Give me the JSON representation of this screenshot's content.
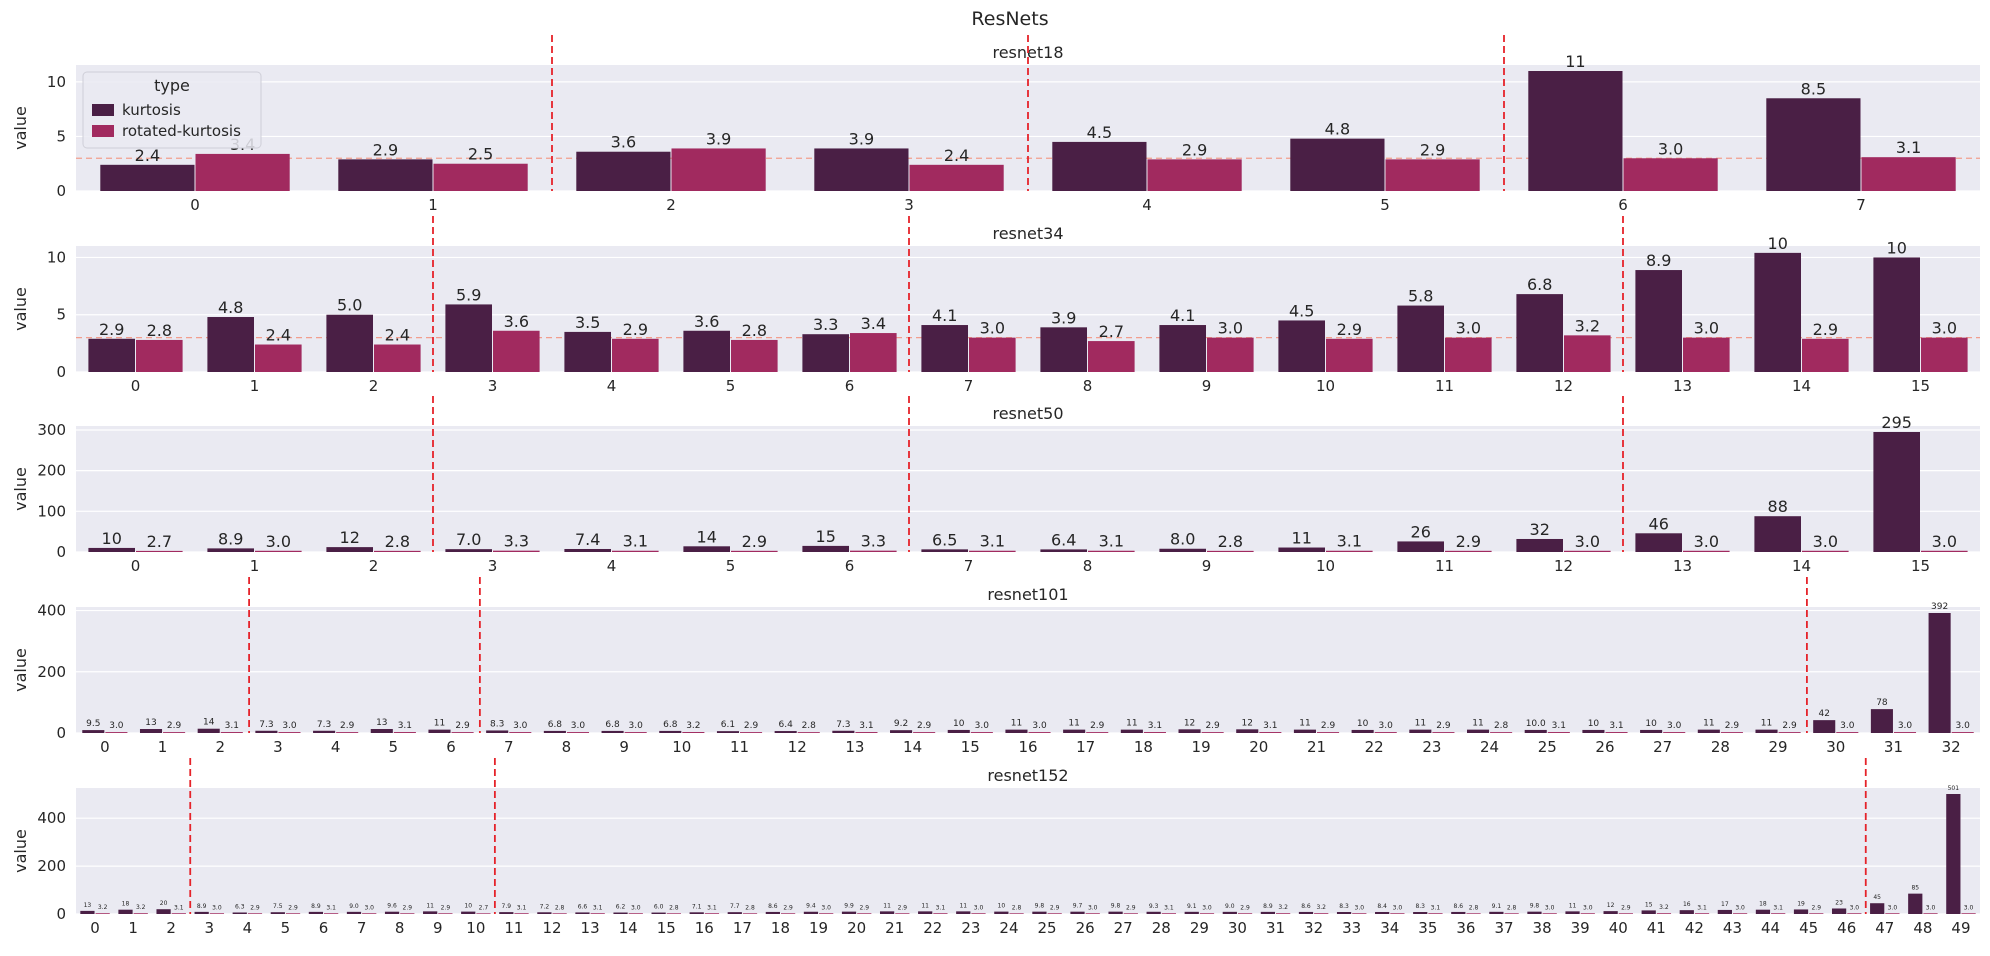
{
  "figure": {
    "title": "ResNets"
  },
  "colors": {
    "kurtosis": "#4a1f45",
    "rotated_kurtosis": "#a12a5f",
    "panel_bg": "#eaeaf2",
    "grid": "#ffffff",
    "ref_line": "#f29e8e",
    "stage_line": "#e5232a"
  },
  "legend": {
    "title": "type",
    "items": [
      "kurtosis",
      "rotated-kurtosis"
    ],
    "placement": "top-left (first panel)"
  },
  "chart_data": [
    {
      "type": "bar",
      "title": "resnet18",
      "ylabel": "value",
      "ylim": [
        0,
        11.55
      ],
      "yticks": [
        0,
        5,
        10
      ],
      "categories": [
        "0",
        "1",
        "2",
        "3",
        "4",
        "5",
        "6",
        "7"
      ],
      "series": [
        {
          "name": "kurtosis",
          "values": [
            2.4,
            2.9,
            3.6,
            3.9,
            4.5,
            4.8,
            11,
            8.5
          ],
          "labels": [
            "2.4",
            "2.9",
            "3.6",
            "3.9",
            "4.5",
            "4.8",
            "11",
            "8.5"
          ]
        },
        {
          "name": "rotated-kurtosis",
          "values": [
            3.4,
            2.5,
            3.9,
            2.4,
            2.9,
            2.9,
            3.0,
            3.1
          ],
          "labels": [
            "3.4",
            "2.5",
            "3.9",
            "2.4",
            "2.9",
            "2.9",
            "3.0",
            "3.1"
          ]
        }
      ],
      "reference_line": 3,
      "stage_boundaries": [
        1.5,
        3.5,
        5.5
      ],
      "label_font_size": 16
    },
    {
      "type": "bar",
      "title": "resnet34",
      "ylabel": "value",
      "ylim": [
        0,
        11.0
      ],
      "yticks": [
        0,
        5,
        10
      ],
      "categories": [
        "0",
        "1",
        "2",
        "3",
        "4",
        "5",
        "6",
        "7",
        "8",
        "9",
        "10",
        "11",
        "12",
        "13",
        "14",
        "15"
      ],
      "series": [
        {
          "name": "kurtosis",
          "values": [
            2.9,
            4.8,
            5.0,
            5.9,
            3.5,
            3.6,
            3.3,
            4.1,
            3.9,
            4.1,
            4.5,
            5.8,
            6.8,
            8.9,
            10.4,
            10.0
          ],
          "labels": [
            "2.9",
            "4.8",
            "5.0",
            "5.9",
            "3.5",
            "3.6",
            "3.3",
            "4.1",
            "3.9",
            "4.1",
            "4.5",
            "5.8",
            "6.8",
            "8.9",
            "10",
            "10"
          ]
        },
        {
          "name": "rotated-kurtosis",
          "values": [
            2.8,
            2.4,
            2.4,
            3.6,
            2.9,
            2.8,
            3.4,
            3.0,
            2.7,
            3.0,
            2.9,
            3.0,
            3.2,
            3.0,
            2.9,
            3.0
          ],
          "labels": [
            "2.8",
            "2.4",
            "2.4",
            "3.6",
            "2.9",
            "2.8",
            "3.4",
            "3.0",
            "2.7",
            "3.0",
            "2.9",
            "3.0",
            "3.2",
            "3.0",
            "2.9",
            "3.0"
          ]
        }
      ],
      "reference_line": 3,
      "stage_boundaries": [
        2.5,
        6.5,
        12.5
      ],
      "label_font_size": 16
    },
    {
      "type": "bar",
      "title": "resnet50",
      "ylabel": "value",
      "ylim": [
        0,
        309.75
      ],
      "yticks": [
        0,
        100,
        200,
        300
      ],
      "categories": [
        "0",
        "1",
        "2",
        "3",
        "4",
        "5",
        "6",
        "7",
        "8",
        "9",
        "10",
        "11",
        "12",
        "13",
        "14",
        "15"
      ],
      "series": [
        {
          "name": "kurtosis",
          "values": [
            10,
            8.9,
            12,
            7.0,
            7.4,
            14,
            15,
            6.5,
            6.4,
            8.0,
            11,
            26,
            32,
            46,
            88,
            295
          ],
          "labels": [
            "10",
            "8.9",
            "12",
            "7.0",
            "7.4",
            "14",
            "15",
            "6.5",
            "6.4",
            "8.0",
            "11",
            "26",
            "32",
            "46",
            "88",
            "295"
          ]
        },
        {
          "name": "rotated-kurtosis",
          "values": [
            2.7,
            3.0,
            2.8,
            3.3,
            3.1,
            2.9,
            3.3,
            3.1,
            3.1,
            2.8,
            3.1,
            2.9,
            3.0,
            3.0,
            3.0,
            3.0
          ],
          "labels": [
            "2.7",
            "3.0",
            "2.8",
            "3.3",
            "3.1",
            "2.9",
            "3.3",
            "3.1",
            "3.1",
            "2.8",
            "3.1",
            "2.9",
            "3.0",
            "3.0",
            "3.0",
            "3.0"
          ]
        }
      ],
      "stage_boundaries": [
        2.5,
        6.5,
        12.5
      ],
      "label_font_size": 16
    },
    {
      "type": "bar",
      "title": "resnet101",
      "ylabel": "value",
      "ylim": [
        0,
        411.6
      ],
      "yticks": [
        0,
        200,
        400
      ],
      "categories": [
        "0",
        "1",
        "2",
        "3",
        "4",
        "5",
        "6",
        "7",
        "8",
        "9",
        "10",
        "11",
        "12",
        "13",
        "14",
        "15",
        "16",
        "17",
        "18",
        "19",
        "20",
        "21",
        "22",
        "23",
        "24",
        "25",
        "26",
        "27",
        "28",
        "29",
        "30",
        "31",
        "32"
      ],
      "series": [
        {
          "name": "kurtosis",
          "values": [
            9.5,
            13,
            14,
            7.3,
            7.3,
            13,
            11,
            8.3,
            6.8,
            6.8,
            6.8,
            6.1,
            6.4,
            7.3,
            9.2,
            10,
            11,
            11,
            11,
            12,
            12,
            11,
            10,
            11,
            11,
            10.0,
            10,
            10,
            11,
            11,
            42,
            78,
            392
          ],
          "labels": [
            "9.5",
            "13",
            "14",
            "7.3",
            "7.3",
            "13",
            "11",
            "8.3",
            "6.8",
            "6.8",
            "6.8",
            "6.1",
            "6.4",
            "7.3",
            "9.2",
            "10",
            "11",
            "11",
            "11",
            "12",
            "12",
            "11",
            "10",
            "11",
            "11",
            "10.0",
            "10",
            "10",
            "11",
            "11",
            "42",
            "78",
            "392"
          ]
        },
        {
          "name": "rotated-kurtosis",
          "values": [
            3.0,
            2.9,
            3.1,
            3.0,
            2.9,
            3.1,
            2.9,
            3.0,
            3.0,
            3.0,
            3.2,
            2.9,
            2.8,
            3.1,
            2.9,
            3.0,
            3.0,
            2.9,
            3.1,
            2.9,
            3.1,
            2.9,
            3.0,
            2.9,
            2.8,
            3.1,
            3.1,
            3.0,
            2.9,
            2.9,
            3.0,
            3.0,
            3.0
          ],
          "labels": [
            "3.0",
            "2.9",
            "3.1",
            "3.0",
            "2.9",
            "3.1",
            "2.9",
            "3.0",
            "3.0",
            "3.0",
            "3.2",
            "2.9",
            "2.8",
            "3.1",
            "2.9",
            "3.0",
            "3.0",
            "2.9",
            "3.1",
            "2.9",
            "3.1",
            "2.9",
            "3.0",
            "2.9",
            "2.8",
            "3.1",
            "3.1",
            "3.0",
            "2.9",
            "2.9",
            "3.0",
            "3.0",
            "3.0"
          ]
        }
      ],
      "stage_boundaries": [
        2.5,
        6.5,
        29.5
      ],
      "label_font_size": 9
    },
    {
      "type": "bar",
      "title": "resnet152",
      "ylabel": "value",
      "ylim": [
        0,
        526.05
      ],
      "yticks": [
        0,
        200,
        400
      ],
      "categories": [
        "0",
        "1",
        "2",
        "3",
        "4",
        "5",
        "6",
        "7",
        "8",
        "9",
        "10",
        "11",
        "12",
        "13",
        "14",
        "15",
        "16",
        "17",
        "18",
        "19",
        "20",
        "21",
        "22",
        "23",
        "24",
        "25",
        "26",
        "27",
        "28",
        "29",
        "30",
        "31",
        "32",
        "33",
        "34",
        "35",
        "36",
        "37",
        "38",
        "39",
        "40",
        "41",
        "42",
        "43",
        "44",
        "45",
        "46",
        "47",
        "48",
        "49"
      ],
      "series": [
        {
          "name": "kurtosis",
          "values": [
            13,
            18,
            20,
            8.9,
            6.3,
            7.5,
            8.9,
            9.0,
            9.6,
            11,
            10,
            7.9,
            7.2,
            6.6,
            6.2,
            6.0,
            7.1,
            7.7,
            8.6,
            9.4,
            9.9,
            11,
            11,
            11,
            10,
            9.8,
            9.7,
            9.8,
            9.3,
            9.1,
            9.0,
            8.9,
            8.6,
            8.3,
            8.4,
            8.3,
            8.6,
            9.1,
            9.8,
            11,
            12,
            15,
            16,
            17,
            18,
            19,
            23,
            45,
            85,
            501
          ],
          "labels": [
            "13",
            "18",
            "20",
            "8.9",
            "6.3",
            "7.5",
            "8.9",
            "9.0",
            "9.6",
            "11",
            "10",
            "7.9",
            "7.2",
            "6.6",
            "6.2",
            "6.0",
            "7.1",
            "7.7",
            "8.6",
            "9.4",
            "9.9",
            "11",
            "11",
            "11",
            "10",
            "9.8",
            "9.7",
            "9.8",
            "9.3",
            "9.1",
            "9.0",
            "8.9",
            "8.6",
            "8.3",
            "8.4",
            "8.3",
            "8.6",
            "9.1",
            "9.8",
            "11",
            "12",
            "15",
            "16",
            "17",
            "18",
            "19",
            "23",
            "45",
            "85",
            "501"
          ]
        },
        {
          "name": "rotated-kurtosis",
          "values": [
            3.2,
            3.2,
            3.1,
            3.0,
            2.9,
            2.9,
            3.1,
            3.0,
            2.9,
            2.9,
            2.7,
            3.1,
            2.8,
            3.1,
            3.0,
            2.8,
            3.1,
            2.8,
            2.9,
            3.0,
            2.9,
            2.9,
            3.1,
            3.0,
            2.8,
            2.9,
            3.0,
            2.9,
            3.1,
            3.0,
            2.9,
            3.2,
            3.2,
            3.0,
            3.0,
            3.1,
            2.8,
            2.8,
            3.0,
            3.0,
            2.9,
            3.2,
            3.1,
            3.0,
            3.1,
            2.9,
            3.0,
            3.0,
            3.0,
            3.0
          ],
          "labels": [
            "3.2",
            "3.2",
            "3.1",
            "3.0",
            "2.9",
            "2.9",
            "3.1",
            "3.0",
            "2.9",
            "2.9",
            "2.7",
            "3.1",
            "2.8",
            "3.1",
            "3.0",
            "2.8",
            "3.1",
            "2.8",
            "2.9",
            "3.0",
            "2.9",
            "2.9",
            "3.1",
            "3.0",
            "2.8",
            "2.9",
            "3.0",
            "2.9",
            "3.1",
            "3.0",
            "2.9",
            "3.2",
            "3.2",
            "3.0",
            "3.0",
            "3.1",
            "2.8",
            "2.8",
            "3.0",
            "3.0",
            "2.9",
            "3.2",
            "3.1",
            "3.0",
            "3.1",
            "2.9",
            "3.0",
            "3.0",
            "3.0",
            "3.0"
          ]
        }
      ],
      "stage_boundaries": [
        2.5,
        10.5,
        46.5
      ],
      "label_font_size": 6
    }
  ]
}
